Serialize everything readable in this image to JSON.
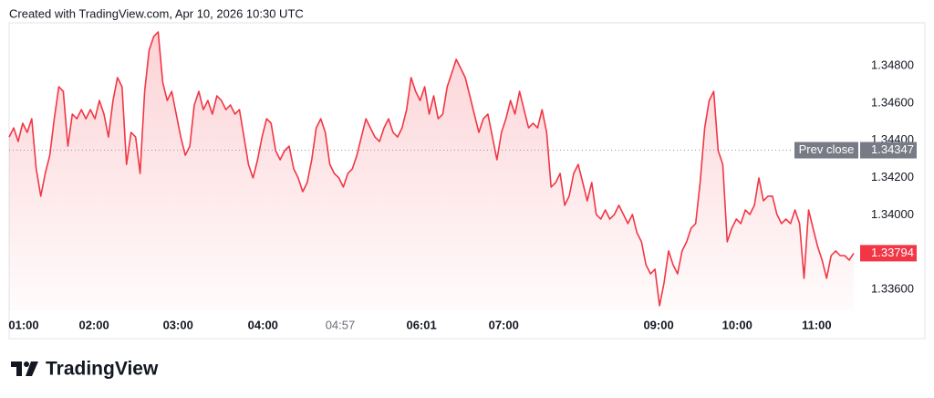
{
  "chart_data": {
    "type": "line",
    "header": "Created with TradingView.com, Apr 10, 2026 10:30 UTC",
    "brand": "TradingView",
    "color": "#f23645",
    "values": [
      1.34418,
      1.34467,
      1.34394,
      1.34492,
      1.34443,
      1.34516,
      1.34247,
      1.341,
      1.34222,
      1.3432,
      1.34516,
      1.34688,
      1.34663,
      1.34369,
      1.34541,
      1.34516,
      1.34565,
      1.34516,
      1.34565,
      1.34516,
      1.34614,
      1.34541,
      1.34418,
      1.34614,
      1.34737,
      1.34688,
      1.34271,
      1.34443,
      1.34418,
      1.34222,
      1.34663,
      1.34884,
      1.34957,
      1.34982,
      1.34712,
      1.34614,
      1.34663,
      1.34541,
      1.34418,
      1.3432,
      1.34369,
      1.3459,
      1.34663,
      1.34565,
      1.34614,
      1.34541,
      1.34639,
      1.34614,
      1.34565,
      1.3459,
      1.34541,
      1.34565,
      1.34418,
      1.34271,
      1.34198,
      1.34296,
      1.34418,
      1.34516,
      1.34492,
      1.34345,
      1.34296,
      1.34345,
      1.34369,
      1.34247,
      1.34198,
      1.34124,
      1.34173,
      1.34296,
      1.34467,
      1.34516,
      1.34443,
      1.34271,
      1.34222,
      1.34198,
      1.34149,
      1.34222,
      1.34247,
      1.3432,
      1.34418,
      1.34516,
      1.34467,
      1.34418,
      1.34394,
      1.34467,
      1.34516,
      1.34443,
      1.34418,
      1.34467,
      1.34565,
      1.34737,
      1.34663,
      1.34614,
      1.34688,
      1.34541,
      1.34639,
      1.34516,
      1.34541,
      1.34688,
      1.34761,
      1.34835,
      1.34786,
      1.34737,
      1.34639,
      1.34541,
      1.34443,
      1.34516,
      1.34541,
      1.34418,
      1.34296,
      1.34443,
      1.34516,
      1.34614,
      1.34541,
      1.34663,
      1.34565,
      1.34467,
      1.34492,
      1.34467,
      1.34565,
      1.34443,
      1.34149,
      1.34173,
      1.34222,
      1.34051,
      1.341,
      1.34222,
      1.34271,
      1.34173,
      1.34075,
      1.34173,
      1.34002,
      1.33977,
      1.34026,
      1.33977,
      1.34002,
      1.34051,
      1.34002,
      1.33953,
      1.34002,
      1.33904,
      1.33855,
      1.33732,
      1.33683,
      1.33708,
      1.33512,
      1.33634,
      1.33806,
      1.33732,
      1.33683,
      1.33806,
      1.33855,
      1.33928,
      1.33953,
      1.34173,
      1.34467,
      1.34614,
      1.34663,
      1.34345,
      1.34271,
      1.33855,
      1.33928,
      1.33977,
      1.33953,
      1.34026,
      1.34002,
      1.34051,
      1.34198,
      1.34075,
      1.341,
      1.341,
      1.34002,
      1.33953,
      1.33977,
      1.33953,
      1.34026,
      1.33953,
      1.33659,
      1.34026,
      1.33928,
      1.3383,
      1.33757,
      1.33659,
      1.33781,
      1.33806,
      1.33781,
      1.33781,
      1.33757,
      1.33794
    ],
    "xlim": [
      0,
      187
    ],
    "xticks": [
      {
        "value": 3.2,
        "label": "01:00"
      },
      {
        "value": 18.8,
        "label": "02:00"
      },
      {
        "value": 37.4,
        "label": "03:00"
      },
      {
        "value": 56.2,
        "label": "04:00"
      },
      {
        "value": 73.3,
        "label": "04:57"
      },
      {
        "value": 91.3,
        "label": "06:01"
      },
      {
        "value": 109.5,
        "label": "07:00"
      },
      {
        "value": 143.8,
        "label": "09:00"
      },
      {
        "value": 161.2,
        "label": "10:00"
      },
      {
        "value": 178.8,
        "label": "11:00"
      }
    ],
    "ylim": [
      1.33487,
      1.35031
    ],
    "yticks": [
      {
        "value": 1.348,
        "label": "1.34800"
      },
      {
        "value": 1.346,
        "label": "1.34600"
      },
      {
        "value": 1.344,
        "label": "1.34400"
      },
      {
        "value": 1.342,
        "label": "1.34200"
      },
      {
        "value": 1.34,
        "label": "1.34000"
      },
      {
        "value": 1.336,
        "label": "1.33600"
      }
    ],
    "prev_close": {
      "label": "Prev close",
      "value": 1.34347
    }
  }
}
